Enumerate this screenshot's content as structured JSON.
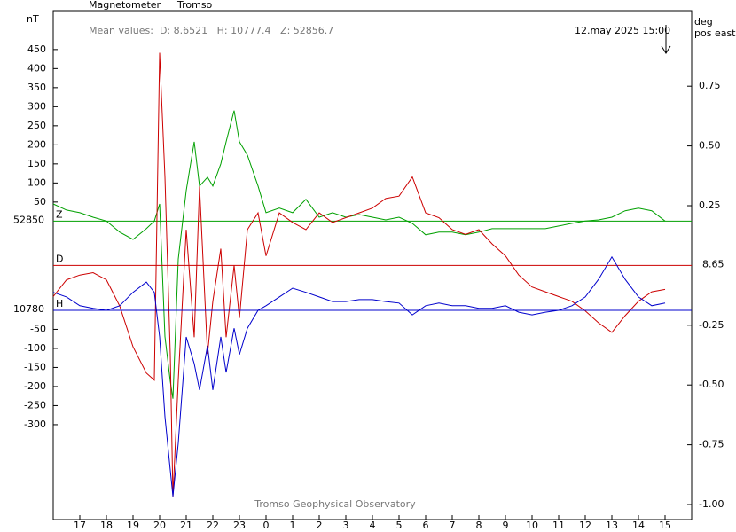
{
  "chart_data": {
    "type": "line",
    "title": "Magnetometer",
    "subtitle": "Tromso",
    "mean_values": "Mean values:  D: 8.6521   H: 10777.4   Z: 52856.7",
    "timestamp": "12.may 2025 15:00",
    "y_unit": "nT",
    "y2_unit": [
      "deg",
      "pos east"
    ],
    "footer": "Tromso Geophysical Observatory",
    "xlim": [
      16,
      40
    ],
    "xticks": [
      17,
      18,
      19,
      20,
      21,
      22,
      23,
      {
        "value": 24,
        "label": "0"
      },
      {
        "value": 25,
        "label": "1"
      },
      {
        "value": 26,
        "label": "2"
      },
      {
        "value": 27,
        "label": "3"
      },
      {
        "value": 28,
        "label": "4"
      },
      {
        "value": 29,
        "label": "5"
      },
      {
        "value": 30,
        "label": "6"
      },
      {
        "value": 31,
        "label": "7"
      },
      {
        "value": 32,
        "label": "8"
      },
      {
        "value": 33,
        "label": "9"
      },
      {
        "value": 34,
        "label": "10"
      },
      {
        "value": 35,
        "label": "11"
      },
      {
        "value": 36,
        "label": "12"
      },
      {
        "value": 37,
        "label": "13"
      },
      {
        "value": 38,
        "label": "14"
      },
      {
        "value": 39,
        "label": "15"
      }
    ],
    "x": [
      16,
      16.5,
      17,
      17.5,
      18,
      18.5,
      19,
      19.5,
      19.8,
      20,
      20.2,
      20.4,
      20.5,
      20.7,
      21,
      21.3,
      21.5,
      21.8,
      22,
      22.3,
      22.5,
      22.8,
      23,
      23.3,
      23.7,
      24,
      24.5,
      25,
      25.5,
      26,
      26.5,
      27,
      27.5,
      28,
      28.5,
      29,
      29.5,
      30,
      30.5,
      31,
      31.5,
      32,
      32.5,
      33,
      33.5,
      34,
      34.5,
      35,
      35.5,
      36,
      36.5,
      37,
      37.5,
      38,
      38.5,
      39
    ],
    "series": [
      {
        "name": "Z",
        "color": "#00a000",
        "axis": "y",
        "baseline_label": "52850",
        "ylim": [
          -783,
          552
        ],
        "yticks": [
          50,
          100,
          150,
          200,
          250,
          300,
          350,
          400,
          450
        ],
        "values": [
          45,
          29,
          22,
          10,
          0,
          -29,
          -48,
          -20,
          0,
          45,
          -303,
          -420,
          -466,
          -100,
          80,
          208,
          92,
          115,
          92,
          150,
          208,
          290,
          208,
          173,
          92,
          22,
          34,
          22,
          57,
          10,
          22,
          10,
          17,
          10,
          3,
          10,
          -6,
          -36,
          -29,
          -29,
          -36,
          -29,
          -20,
          -20,
          -20,
          -20,
          -20,
          -13,
          -6,
          0,
          3,
          10,
          27,
          34,
          27,
          0
        ]
      },
      {
        "name": "D",
        "color": "#cc0000",
        "axis": "y2",
        "baseline_label": "8.65",
        "ylim": [
          -1.063,
          1.066
        ],
        "yticks": [
          0.75,
          {
            "value": 0.5,
            "label": "0.50"
          },
          0.25,
          -0.25,
          {
            "value": -0.5,
            "label": "-0.50"
          },
          -0.75,
          {
            "value": -1,
            "label": "-1.00"
          }
        ],
        "values": [
          -0.13,
          -0.06,
          -0.04,
          -0.03,
          -0.06,
          -0.17,
          -0.34,
          -0.45,
          -0.48,
          0.89,
          0.37,
          -0.37,
          -0.97,
          -0.48,
          0.15,
          -0.3,
          0.33,
          -0.37,
          -0.15,
          0.07,
          -0.3,
          0,
          -0.22,
          0.15,
          0.22,
          0.04,
          0.22,
          0.18,
          0.15,
          0.22,
          0.18,
          0.2,
          0.22,
          0.24,
          0.28,
          0.29,
          0.37,
          0.22,
          0.2,
          0.15,
          0.13,
          0.15,
          0.09,
          0.04,
          -0.04,
          -0.09,
          -0.11,
          -0.13,
          -0.15,
          -0.19,
          -0.24,
          -0.28,
          -0.21,
          -0.15,
          -0.11,
          -0.1
        ]
      },
      {
        "name": "H",
        "color": "#0000cc",
        "axis": "y",
        "baseline_label": "10780",
        "ylim": [
          -549,
          786
        ],
        "yticks": [
          -50,
          -100,
          -150,
          -200,
          -250,
          -300
        ],
        "values": [
          47,
          35,
          12,
          5,
          0,
          12,
          47,
          74,
          47,
          -70,
          -279,
          -419,
          -488,
          -349,
          -70,
          -140,
          -209,
          -93,
          -209,
          -70,
          -163,
          -47,
          -116,
          -47,
          0,
          12,
          35,
          58,
          47,
          35,
          23,
          23,
          28,
          28,
          23,
          19,
          -12,
          12,
          19,
          12,
          12,
          5,
          5,
          12,
          -5,
          -12,
          -5,
          0,
          12,
          35,
          81,
          140,
          81,
          35,
          12,
          19
        ]
      }
    ]
  }
}
